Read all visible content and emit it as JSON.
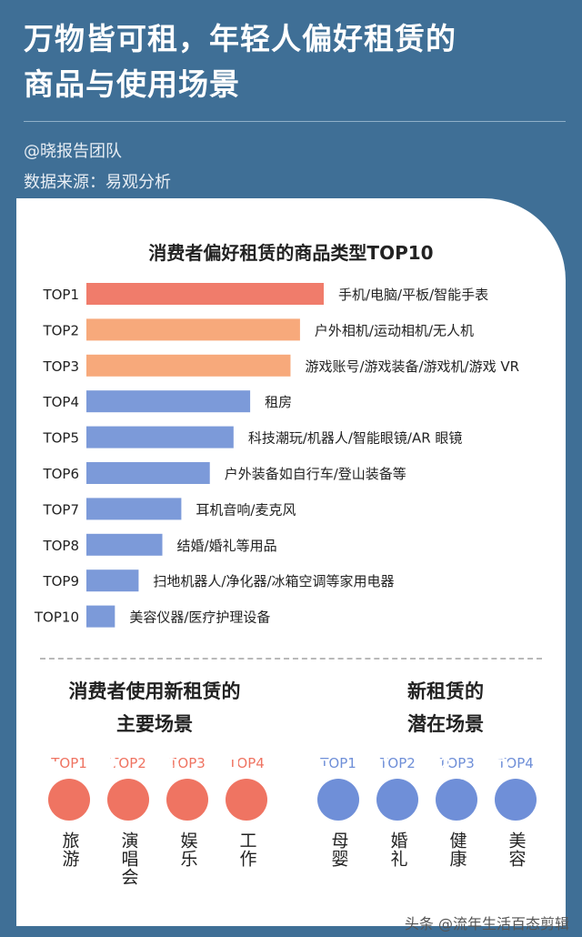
{
  "title_line1": "万物皆可租，年轻人偏好租赁的",
  "title_line2": "商品与使用场景",
  "author": "@晓报告团队",
  "source": "数据来源：易观分析",
  "chart_data": {
    "type": "bar",
    "orientation": "horizontal",
    "title": "消费者偏好租赁的商品类型TOP10",
    "categories": [
      "TOP1",
      "TOP2",
      "TOP3",
      "TOP4",
      "TOP5",
      "TOP6",
      "TOP7",
      "TOP8",
      "TOP9",
      "TOP10"
    ],
    "labels": [
      "手机/电脑/平板/智能手表",
      "户外相机/运动相机/无人机",
      "游戏账号/游戏装备/游戏机/游戏 VR",
      "租房",
      "科技潮玩/机器人/智能眼镜/AR 眼镜",
      "户外装备如自行车/登山装备等",
      "耳机音响/麦克风",
      "结婚/婚礼等用品",
      "扫地机器人/净化器/冰箱空调等家用电器",
      "美容仪器/医疗护理设备"
    ],
    "values": [
      10,
      9,
      8.6,
      6.9,
      6.2,
      5.2,
      4.0,
      3.2,
      2.2,
      1.2
    ],
    "xlim": [
      0,
      10
    ],
    "colors": [
      "#f07c6b",
      "#f7a97b",
      "#f7a97b",
      "#7c9ad9",
      "#7c9ad9",
      "#7c9ad9",
      "#7c9ad9",
      "#7c9ad9",
      "#7c9ad9",
      "#7c9ad9"
    ],
    "legend": "none",
    "grid": false
  },
  "left_section": {
    "title_line1": "消费者使用新租赁的",
    "title_line2": "主要场景",
    "color": "#ef7462",
    "items": [
      {
        "rank": "TOP1",
        "label": "旅游",
        "icon": "car-icon"
      },
      {
        "rank": "TOP2",
        "label": "演唱会",
        "icon": "microphone-icon"
      },
      {
        "rank": "TOP3",
        "label": "娱乐",
        "icon": "music-disc-icon"
      },
      {
        "rank": "TOP4",
        "label": "工作",
        "icon": "laptop-icon"
      }
    ]
  },
  "right_section": {
    "title_line1": "新租赁的",
    "title_line2": "潜在场景",
    "color": "#6f8fd8",
    "items": [
      {
        "rank": "TOP1",
        "label": "母婴",
        "icon": "stroller-icon"
      },
      {
        "rank": "TOP2",
        "label": "婚礼",
        "icon": "couple-icon"
      },
      {
        "rank": "TOP3",
        "label": "健康",
        "icon": "heart-pulse-icon"
      },
      {
        "rank": "TOP4",
        "label": "美容",
        "icon": "face-icon"
      }
    ]
  },
  "footer": "头条 @流年生活百态剪辑"
}
